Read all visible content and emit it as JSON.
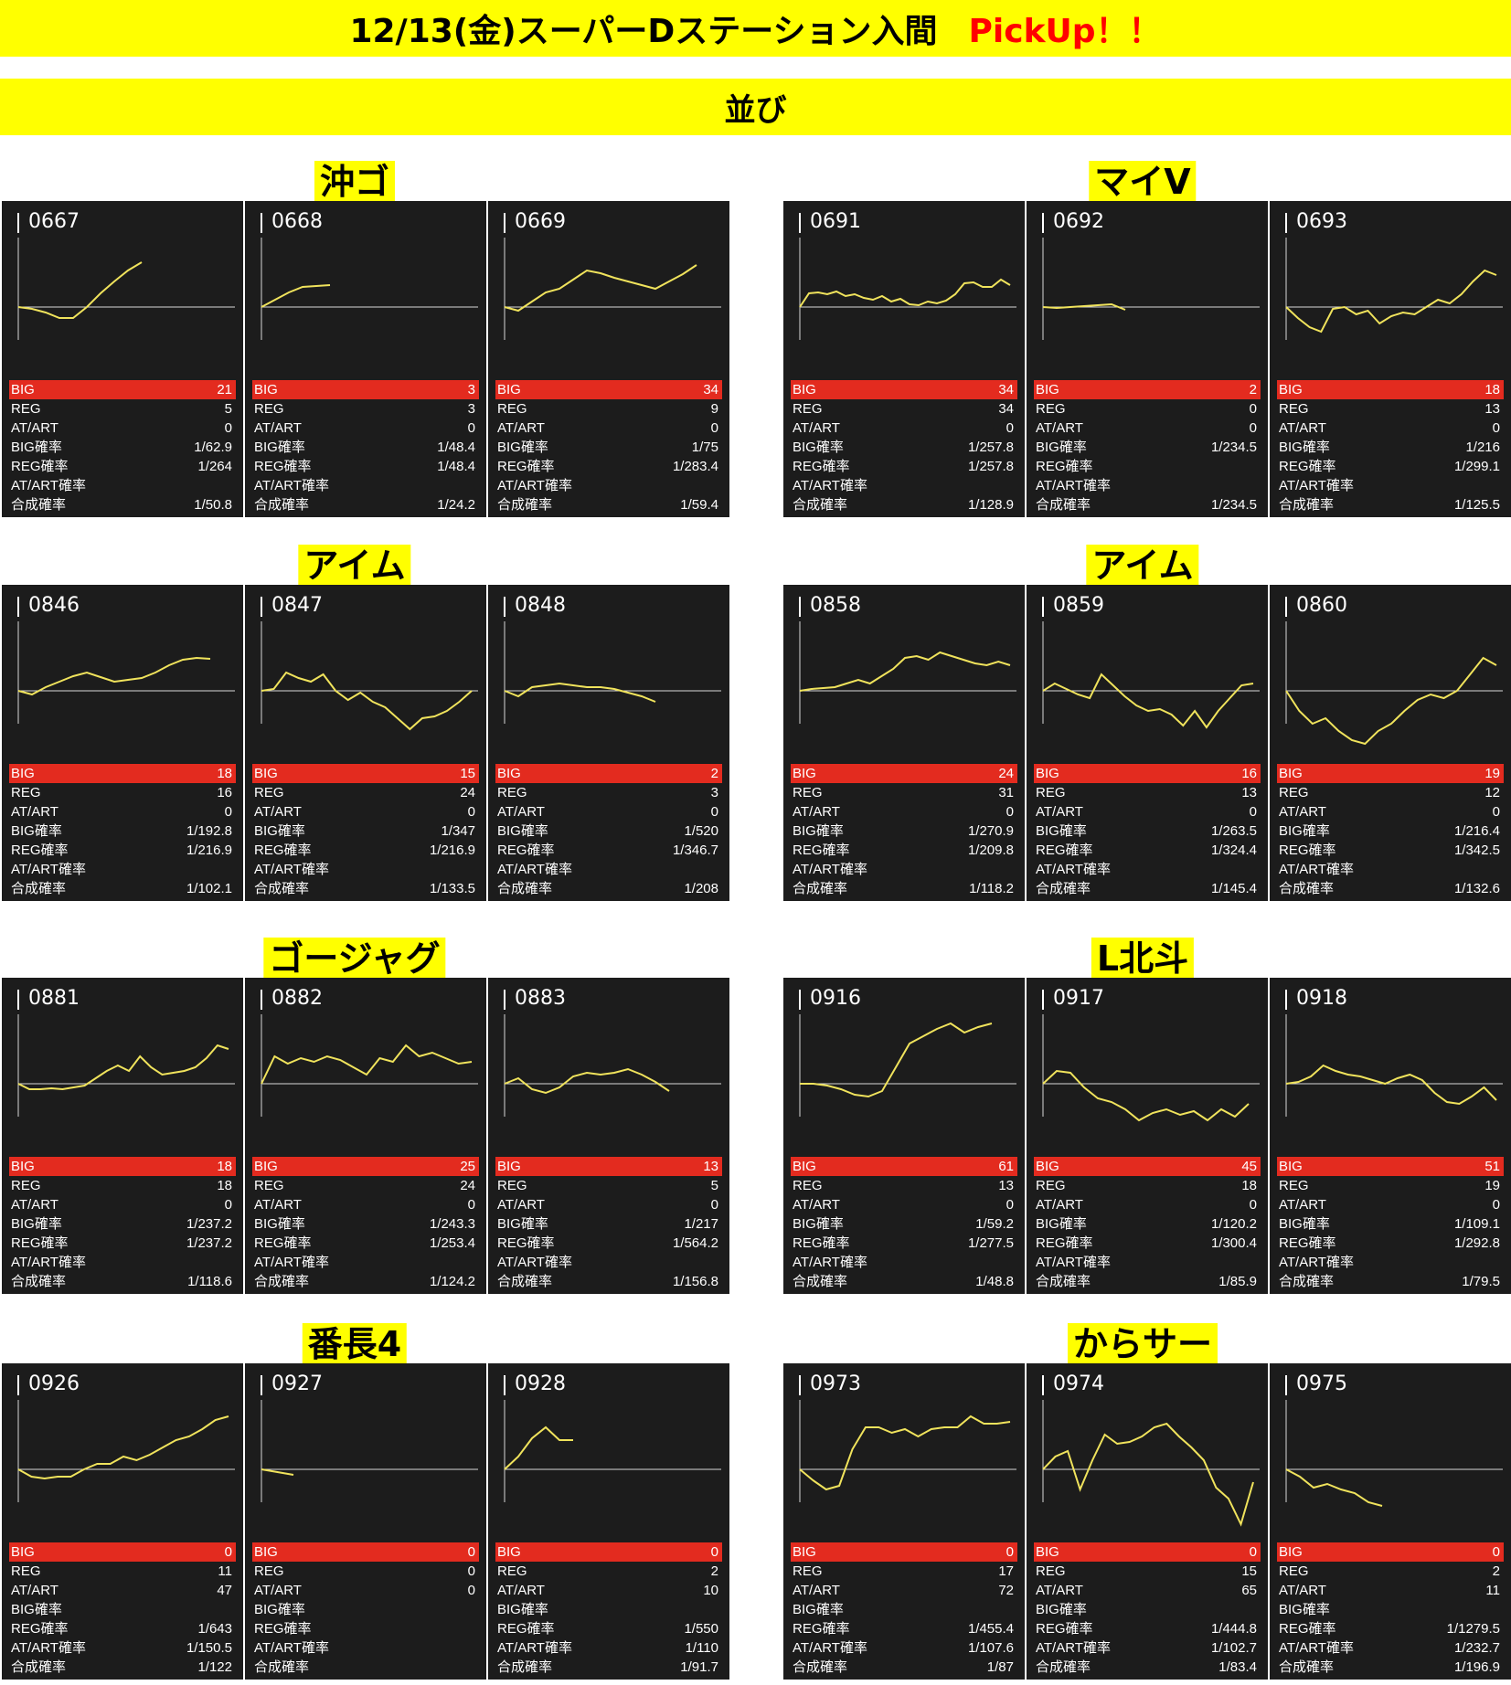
{
  "header": {
    "title": "12/13(金)スーパーDステーション入間",
    "pickup": "PickUp！！",
    "subtitle": "並び"
  },
  "colors": {
    "banner": "#ffff00",
    "pickup": "#ff0000",
    "panel_bg": "#1c1c1c",
    "big_row": "#e32b1f",
    "graph_line": "#f0e35c"
  },
  "stat_labels": [
    "BIG",
    "REG",
    "AT/ART",
    "BIG確率",
    "REG確率",
    "AT/ART確率",
    "合成確率"
  ],
  "groups": [
    {
      "title": "沖ゴ",
      "machines": [
        {
          "no": "0667",
          "stats": [
            "21",
            "5",
            "0",
            "1/62.9",
            "1/264",
            "",
            "1/50.8"
          ],
          "graph": [
            0,
            -2,
            -6,
            -12,
            -12,
            0,
            15,
            28,
            40,
            49
          ]
        },
        {
          "no": "0668",
          "stats": [
            "3",
            "3",
            "0",
            "1/48.4",
            "1/48.4",
            "",
            "1/24.2"
          ],
          "graph": [
            0,
            8,
            16,
            22,
            23,
            24
          ]
        },
        {
          "no": "0669",
          "stats": [
            "34",
            "9",
            "0",
            "1/75",
            "1/283.4",
            "",
            "1/59.4"
          ],
          "graph": [
            0,
            -4,
            6,
            16,
            20,
            30,
            40,
            37,
            32,
            28,
            24,
            20,
            28,
            36,
            46
          ]
        }
      ]
    },
    {
      "title": "マイV",
      "machines": [
        {
          "no": "0691",
          "stats": [
            "34",
            "34",
            "0",
            "1/257.8",
            "1/257.8",
            "",
            "1/128.9"
          ],
          "graph": [
            0,
            15,
            16,
            14,
            17,
            12,
            14,
            10,
            8,
            12,
            6,
            9,
            3,
            2,
            6,
            4,
            7,
            14,
            26,
            27,
            22,
            22,
            30,
            24
          ]
        },
        {
          "no": "0692",
          "stats": [
            "2",
            "0",
            "0",
            "1/234.5",
            "",
            "",
            "1/234.5"
          ],
          "graph": [
            0,
            -1,
            0,
            1,
            2,
            3,
            -3
          ]
        },
        {
          "no": "0693",
          "stats": [
            "18",
            "13",
            "0",
            "1/216",
            "1/299.1",
            "",
            "1/125.5"
          ],
          "graph": [
            0,
            -12,
            -22,
            -27,
            -2,
            0,
            -8,
            -4,
            -18,
            -10,
            -6,
            -8,
            0,
            8,
            4,
            14,
            28,
            40,
            35
          ]
        }
      ]
    },
    {
      "title": "アイム",
      "machines": [
        {
          "no": "0846",
          "stats": [
            "18",
            "16",
            "0",
            "1/192.8",
            "1/216.9",
            "",
            "1/102.1"
          ],
          "graph": [
            0,
            -4,
            4,
            10,
            16,
            20,
            15,
            10,
            12,
            14,
            20,
            28,
            34,
            36,
            35
          ]
        },
        {
          "no": "0847",
          "stats": [
            "15",
            "24",
            "0",
            "1/347",
            "1/216.9",
            "",
            "1/133.5"
          ],
          "graph": [
            0,
            2,
            20,
            14,
            10,
            18,
            0,
            -10,
            -2,
            -12,
            -18,
            -30,
            -42,
            -30,
            -28,
            -22,
            -12,
            0
          ]
        },
        {
          "no": "0848",
          "stats": [
            "2",
            "3",
            "0",
            "1/520",
            "1/346.7",
            "",
            "1/208"
          ],
          "graph": [
            0,
            -6,
            4,
            6,
            8,
            6,
            4,
            4,
            2,
            -2,
            -6,
            -12
          ]
        }
      ]
    },
    {
      "title": "アイム",
      "machines": [
        {
          "no": "0858",
          "stats": [
            "24",
            "31",
            "0",
            "1/270.9",
            "1/209.8",
            "",
            "1/118.2"
          ],
          "graph": [
            0,
            2,
            3,
            4,
            8,
            12,
            8,
            16,
            24,
            36,
            38,
            34,
            42,
            38,
            34,
            30,
            28,
            32,
            28
          ]
        },
        {
          "no": "0859",
          "stats": [
            "16",
            "13",
            "0",
            "1/263.5",
            "1/324.4",
            "",
            "1/145.4"
          ],
          "graph": [
            0,
            8,
            2,
            -4,
            -8,
            18,
            6,
            -6,
            -16,
            -22,
            -20,
            -26,
            -38,
            -22,
            -40,
            -22,
            -8,
            6,
            8
          ]
        },
        {
          "no": "0860",
          "stats": [
            "19",
            "12",
            "0",
            "1/216.4",
            "1/342.5",
            "",
            "1/132.6"
          ],
          "graph": [
            0,
            -22,
            -36,
            -30,
            -44,
            -54,
            -58,
            -44,
            -36,
            -22,
            -10,
            -4,
            -8,
            0,
            18,
            36,
            28
          ]
        }
      ]
    },
    {
      "title": "ゴージャグ",
      "machines": [
        {
          "no": "0881",
          "stats": [
            "18",
            "18",
            "0",
            "1/237.2",
            "1/237.2",
            "",
            "1/118.6"
          ],
          "graph": [
            0,
            -6,
            -6,
            -5,
            -6,
            -4,
            -2,
            6,
            14,
            20,
            14,
            30,
            18,
            10,
            12,
            14,
            18,
            28,
            42,
            38
          ]
        },
        {
          "no": "0882",
          "stats": [
            "25",
            "24",
            "0",
            "1/243.3",
            "1/253.4",
            "",
            "1/124.2"
          ],
          "graph": [
            0,
            30,
            22,
            28,
            24,
            30,
            26,
            18,
            10,
            28,
            24,
            42,
            30,
            34,
            28,
            22,
            24
          ]
        },
        {
          "no": "0883",
          "stats": [
            "13",
            "5",
            "0",
            "1/217",
            "1/564.2",
            "",
            "1/156.8"
          ],
          "graph": [
            0,
            6,
            -6,
            -10,
            -4,
            8,
            12,
            10,
            12,
            16,
            10,
            2,
            -8
          ]
        }
      ]
    },
    {
      "title": "L北斗",
      "machines": [
        {
          "no": "0916",
          "stats": [
            "61",
            "13",
            "0",
            "1/59.2",
            "1/277.5",
            "",
            "1/48.8"
          ],
          "graph": [
            0,
            0,
            -2,
            -6,
            -12,
            -14,
            -8,
            18,
            44,
            52,
            60,
            66,
            56,
            62,
            66
          ]
        },
        {
          "no": "0917",
          "stats": [
            "45",
            "18",
            "0",
            "1/120.2",
            "1/300.4",
            "",
            "1/85.9"
          ],
          "graph": [
            0,
            14,
            12,
            -4,
            -16,
            -20,
            -28,
            -40,
            -32,
            -28,
            -34,
            -30,
            -40,
            -28,
            -36,
            -22
          ]
        },
        {
          "no": "0918",
          "stats": [
            "51",
            "19",
            "0",
            "1/109.1",
            "1/292.8",
            "",
            "1/79.5"
          ],
          "graph": [
            0,
            2,
            8,
            20,
            14,
            10,
            8,
            4,
            0,
            6,
            10,
            4,
            -10,
            -20,
            -22,
            -14,
            -4,
            -18
          ]
        }
      ]
    },
    {
      "title": "番長4",
      "machines": [
        {
          "no": "0926",
          "stats": [
            "0",
            "11",
            "47",
            "",
            "1/643",
            "1/150.5",
            "1/122"
          ],
          "graph": [
            0,
            -8,
            -10,
            -8,
            -8,
            0,
            6,
            6,
            14,
            10,
            16,
            24,
            32,
            36,
            44,
            54,
            58
          ]
        },
        {
          "no": "0927",
          "stats": [
            "0",
            "0",
            "0",
            "",
            "",
            "",
            ""
          ],
          "graph": [
            0,
            -6
          ]
        },
        {
          "no": "0928",
          "stats": [
            "0",
            "2",
            "10",
            "",
            "1/550",
            "1/110",
            "1/91.7"
          ],
          "graph": [
            0,
            14,
            34,
            46,
            32,
            32
          ]
        }
      ]
    },
    {
      "title": "からサー",
      "machines": [
        {
          "no": "0973",
          "stats": [
            "0",
            "17",
            "72",
            "",
            "1/455.4",
            "1/107.6",
            "1/87"
          ],
          "graph": [
            0,
            -12,
            -22,
            -18,
            22,
            46,
            46,
            40,
            44,
            36,
            44,
            46,
            46,
            58,
            50,
            50,
            52
          ]
        },
        {
          "no": "0974",
          "stats": [
            "0",
            "15",
            "65",
            "",
            "1/444.8",
            "1/102.7",
            "1/83.4"
          ],
          "graph": [
            0,
            14,
            20,
            -22,
            10,
            38,
            28,
            30,
            36,
            46,
            50,
            36,
            24,
            10,
            -20,
            -32,
            -60,
            -14
          ]
        },
        {
          "no": "0975",
          "stats": [
            "0",
            "2",
            "11",
            "",
            "1/1279.5",
            "1/232.7",
            "1/196.9"
          ],
          "graph": [
            0,
            -8,
            -20,
            -16,
            -22,
            -26,
            -36,
            -40
          ]
        }
      ]
    }
  ]
}
